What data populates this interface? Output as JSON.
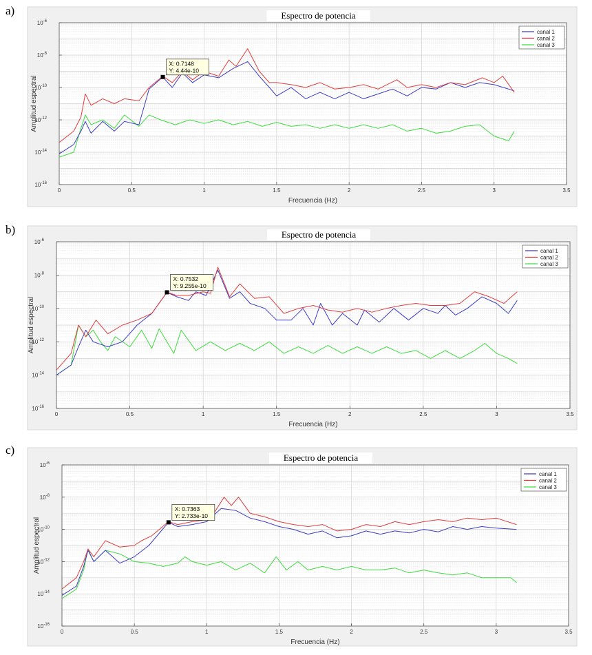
{
  "chart_data": [
    {
      "type": "line",
      "panel": "a)",
      "title": "Espectro de potencia",
      "xlabel": "Frecuencia (Hz)",
      "ylabel": "Amplitud espectral",
      "xlim": [
        0,
        3.5
      ],
      "ylim": [
        1e-16,
        1e-06
      ],
      "yscale": "log",
      "xticks": [
        "0",
        "0.5",
        "1",
        "1.5",
        "2",
        "2.5",
        "3",
        "3.5"
      ],
      "yticks": [
        "10^-16",
        "10^-14",
        "10^-12",
        "10^-10",
        "10^-8",
        "10^-6"
      ],
      "grid": true,
      "legend_position": "top-right",
      "colors": {
        "canal 1": "#3b3bc8",
        "canal 2": "#e03c3c",
        "canal 3": "#3cdc3c"
      },
      "datatip": {
        "x": 0.7148,
        "y": 4.44e-10,
        "x_text": "X: 0.7148",
        "y_text": "Y: 4.44e-10"
      },
      "series": [
        {
          "name": "canal 1",
          "x": [
            0,
            0.1,
            0.15,
            0.18,
            0.22,
            0.3,
            0.38,
            0.45,
            0.55,
            0.62,
            0.7148,
            0.78,
            0.85,
            0.92,
            1.0,
            1.1,
            1.2,
            1.3,
            1.38,
            1.45,
            1.5,
            1.6,
            1.7,
            1.8,
            1.9,
            2.0,
            2.1,
            2.2,
            2.3,
            2.4,
            2.5,
            2.6,
            2.7,
            2.8,
            2.9,
            3.0,
            3.1,
            3.14
          ],
          "y": [
            8e-15,
            3e-14,
            2e-13,
            8e-13,
            1.5e-13,
            8e-13,
            2e-13,
            8e-13,
            5e-13,
            8e-11,
            4.44e-10,
            1e-10,
            8e-10,
            2e-10,
            6e-10,
            4e-10,
            1.5e-09,
            4e-09,
            5e-10,
            1e-10,
            3e-11,
            1e-10,
            2e-11,
            5e-11,
            2e-11,
            5e-11,
            2e-11,
            4e-11,
            8e-11,
            3e-11,
            1e-10,
            8e-11,
            2e-10,
            1e-10,
            2e-10,
            1.5e-10,
            8e-11,
            6e-11
          ]
        },
        {
          "name": "canal 2",
          "x": [
            0,
            0.1,
            0.15,
            0.18,
            0.22,
            0.3,
            0.38,
            0.45,
            0.55,
            0.62,
            0.7148,
            0.78,
            0.85,
            0.92,
            1.0,
            1.1,
            1.17,
            1.22,
            1.3,
            1.38,
            1.45,
            1.5,
            1.6,
            1.7,
            1.8,
            1.9,
            2.0,
            2.1,
            2.2,
            2.33,
            2.4,
            2.5,
            2.6,
            2.7,
            2.8,
            2.92,
            3.0,
            3.06,
            3.14
          ],
          "y": [
            4e-14,
            2e-13,
            1.5e-12,
            4e-11,
            8e-12,
            2e-11,
            1e-11,
            2e-11,
            1.5e-11,
            1e-10,
            5e-10,
            2e-10,
            1e-09,
            3e-10,
            1e-09,
            5e-10,
            5e-09,
            2e-09,
            2.5e-08,
            1e-09,
            2e-10,
            2e-10,
            1.5e-10,
            1e-10,
            2e-10,
            8e-11,
            1e-10,
            1.5e-10,
            8e-11,
            3e-10,
            1e-10,
            1.5e-10,
            1e-10,
            2e-10,
            1.5e-10,
            4e-10,
            2e-10,
            5e-10,
            5e-11
          ]
        },
        {
          "name": "canal 3",
          "x": [
            0,
            0.1,
            0.15,
            0.18,
            0.22,
            0.3,
            0.38,
            0.45,
            0.55,
            0.62,
            0.7,
            0.8,
            0.9,
            1.0,
            1.1,
            1.2,
            1.3,
            1.4,
            1.5,
            1.6,
            1.7,
            1.8,
            1.9,
            2.0,
            2.1,
            2.2,
            2.3,
            2.4,
            2.5,
            2.6,
            2.7,
            2.8,
            2.9,
            3.0,
            3.1,
            3.14
          ],
          "y": [
            5e-15,
            1e-14,
            3e-13,
            2e-12,
            5e-13,
            1e-12,
            3e-13,
            2e-12,
            4e-13,
            2e-12,
            1e-12,
            5e-13,
            1e-12,
            6e-13,
            1e-12,
            5e-13,
            8e-13,
            4e-13,
            7e-13,
            4e-13,
            5e-13,
            3e-13,
            5e-13,
            3e-13,
            5e-13,
            3e-13,
            5e-13,
            2e-13,
            3e-13,
            1.5e-13,
            2e-13,
            4e-13,
            5e-13,
            1e-13,
            5e-14,
            2e-13
          ]
        }
      ]
    },
    {
      "type": "line",
      "panel": "b)",
      "title": "Espectro de potencia",
      "xlabel": "Frecuencia (Hz)",
      "ylabel": "Amplitud espectral",
      "xlim": [
        0,
        3.5
      ],
      "ylim": [
        1e-16,
        1e-06
      ],
      "yscale": "log",
      "xticks": [
        "0",
        "0.5",
        "1",
        "1.5",
        "2",
        "2.5",
        "3",
        "3.5"
      ],
      "yticks": [
        "10^-16",
        "10^-14",
        "10^-12",
        "10^-10",
        "10^-8",
        "10^-6"
      ],
      "grid": true,
      "legend_position": "top-right",
      "colors": {
        "canal 1": "#3b3bc8",
        "canal 2": "#e03c3c",
        "canal 3": "#3cdc3c"
      },
      "datatip": {
        "x": 0.7532,
        "y": 9.255e-10,
        "x_text": "X: 0.7532",
        "y_text": "Y: 9.255e-10"
      },
      "series": [
        {
          "name": "canal 1",
          "x": [
            0,
            0.1,
            0.15,
            0.2,
            0.25,
            0.35,
            0.45,
            0.55,
            0.65,
            0.7532,
            0.82,
            0.9,
            0.95,
            1.02,
            1.1,
            1.18,
            1.25,
            1.32,
            1.42,
            1.5,
            1.6,
            1.68,
            1.75,
            1.8,
            1.88,
            1.95,
            2.05,
            2.1,
            2.2,
            2.3,
            2.4,
            2.5,
            2.6,
            2.65,
            2.72,
            2.8,
            2.9,
            3.0,
            3.08,
            3.14
          ],
          "y": [
            1e-14,
            4e-14,
            5e-13,
            5e-12,
            1e-12,
            5e-13,
            1e-12,
            1e-11,
            5e-11,
            9.255e-10,
            5e-10,
            3e-10,
            1e-09,
            6e-10,
            2e-08,
            4e-10,
            1e-09,
            2e-10,
            1e-10,
            2e-11,
            2e-11,
            1e-10,
            1e-11,
            2e-10,
            1e-11,
            5e-11,
            1e-11,
            8e-11,
            1.5e-11,
            1e-10,
            2e-11,
            1e-10,
            5e-11,
            1.5e-10,
            4e-11,
            1e-10,
            5e-10,
            2e-10,
            5e-11,
            3e-10
          ]
        },
        {
          "name": "canal 2",
          "x": [
            0,
            0.1,
            0.15,
            0.2,
            0.27,
            0.35,
            0.45,
            0.55,
            0.65,
            0.7532,
            0.82,
            0.9,
            1.0,
            1.05,
            1.1,
            1.18,
            1.25,
            1.35,
            1.45,
            1.55,
            1.65,
            1.75,
            1.85,
            1.95,
            2.05,
            2.15,
            2.25,
            2.35,
            2.45,
            2.55,
            2.65,
            2.75,
            2.85,
            2.95,
            3.05,
            3.14
          ],
          "y": [
            2e-14,
            2e-13,
            1e-11,
            2e-12,
            2e-11,
            3e-12,
            1e-11,
            2e-11,
            5e-11,
            9.255e-10,
            6e-10,
            6e-10,
            1e-09,
            8e-10,
            3e-08,
            5e-10,
            3e-09,
            4e-10,
            5e-10,
            5e-11,
            1e-10,
            1.5e-10,
            8e-11,
            6e-11,
            1e-10,
            6e-11,
            1e-10,
            1.5e-10,
            2e-10,
            1.5e-10,
            1.5e-10,
            2e-10,
            1e-09,
            5e-10,
            2e-10,
            1e-09
          ]
        },
        {
          "name": "canal 3",
          "x": [
            0,
            0.1,
            0.15,
            0.2,
            0.25,
            0.3,
            0.35,
            0.4,
            0.5,
            0.58,
            0.65,
            0.7,
            0.8,
            0.85,
            0.95,
            1.05,
            1.15,
            1.25,
            1.35,
            1.45,
            1.55,
            1.65,
            1.75,
            1.85,
            1.95,
            2.05,
            2.15,
            2.25,
            2.35,
            2.45,
            2.55,
            2.65,
            2.75,
            2.85,
            2.92,
            3.0,
            3.08,
            3.14
          ],
          "y": [
            1e-14,
            4e-14,
            1e-11,
            2e-12,
            5e-12,
            1e-12,
            3e-13,
            2e-12,
            5e-13,
            5e-12,
            4e-13,
            6e-12,
            2e-13,
            5e-12,
            3e-13,
            1e-12,
            3e-13,
            8e-13,
            3e-13,
            1e-12,
            2e-13,
            5e-13,
            2e-13,
            6e-13,
            2e-13,
            5e-13,
            2e-13,
            5e-13,
            2e-13,
            3e-13,
            1e-13,
            3e-13,
            1e-13,
            3e-13,
            8e-13,
            2e-13,
            1e-13,
            5e-14
          ]
        }
      ]
    },
    {
      "type": "line",
      "panel": "c)",
      "title": "Espectro de potencia",
      "xlabel": "Frecuencia (Hz)",
      "ylabel": "Amplitud espectral",
      "xlim": [
        0,
        3.5
      ],
      "ylim": [
        1e-16,
        1e-06
      ],
      "yscale": "log",
      "xticks": [
        "0",
        "0.5",
        "1",
        "1.5",
        "2",
        "2.5",
        "3",
        "3.5"
      ],
      "yticks": [
        "10^-16",
        "10^-14",
        "10^-12",
        "10^-10",
        "10^-8",
        "10^-6"
      ],
      "grid": true,
      "legend_position": "top-right",
      "colors": {
        "canal 1": "#3b3bc8",
        "canal 2": "#e03c3c",
        "canal 3": "#3cdc3c"
      },
      "datatip": {
        "x": 0.7363,
        "y": 2.733e-10,
        "x_text": "X: 0.7363",
        "y_text": "Y: 2.733e-10"
      },
      "series": [
        {
          "name": "canal 1",
          "x": [
            0,
            0.1,
            0.15,
            0.18,
            0.22,
            0.3,
            0.4,
            0.5,
            0.6,
            0.7363,
            0.8,
            0.9,
            1.0,
            1.1,
            1.2,
            1.3,
            1.4,
            1.5,
            1.6,
            1.7,
            1.8,
            1.9,
            2.0,
            2.1,
            2.2,
            2.3,
            2.4,
            2.5,
            2.6,
            2.7,
            2.8,
            2.9,
            3.0,
            3.14
          ],
          "y": [
            8e-15,
            3e-14,
            5e-13,
            5e-12,
            1e-12,
            5e-12,
            8e-13,
            2e-12,
            1e-11,
            2.733e-10,
            1.5e-10,
            2e-10,
            3e-10,
            2e-09,
            1.5e-09,
            5e-10,
            3e-10,
            1.5e-10,
            1e-10,
            5e-11,
            8e-11,
            3e-11,
            4e-11,
            8e-11,
            5e-11,
            8e-11,
            6e-11,
            1e-10,
            7e-11,
            1.5e-10,
            1e-10,
            1.5e-10,
            1.2e-10,
            1e-10
          ]
        },
        {
          "name": "canal 2",
          "x": [
            0,
            0.1,
            0.15,
            0.18,
            0.22,
            0.3,
            0.4,
            0.5,
            0.55,
            0.62,
            0.7363,
            0.8,
            0.9,
            1.0,
            1.05,
            1.12,
            1.17,
            1.22,
            1.3,
            1.4,
            1.5,
            1.6,
            1.7,
            1.8,
            1.9,
            2.0,
            2.1,
            2.2,
            2.3,
            2.4,
            2.5,
            2.6,
            2.7,
            2.8,
            2.9,
            3.0,
            3.14
          ],
          "y": [
            2e-14,
            1e-13,
            1e-12,
            6e-12,
            2e-12,
            2e-11,
            8e-12,
            1e-11,
            2e-11,
            4e-11,
            3e-10,
            2e-10,
            3e-10,
            4e-10,
            1e-09,
            1e-08,
            3e-09,
            1e-08,
            1e-09,
            6e-10,
            3e-10,
            2e-10,
            1.5e-10,
            2e-10,
            8e-11,
            1e-10,
            2e-10,
            1.5e-10,
            3e-10,
            2e-10,
            3e-10,
            4e-10,
            3e-10,
            5e-10,
            4e-10,
            5e-10,
            2e-10
          ]
        },
        {
          "name": "canal 3",
          "x": [
            0,
            0.1,
            0.15,
            0.18,
            0.22,
            0.3,
            0.4,
            0.5,
            0.6,
            0.7,
            0.8,
            0.85,
            0.9,
            1.0,
            1.1,
            1.2,
            1.3,
            1.4,
            1.48,
            1.55,
            1.63,
            1.7,
            1.8,
            1.9,
            2.0,
            2.1,
            2.2,
            2.3,
            2.4,
            2.5,
            2.6,
            2.7,
            2.8,
            2.9,
            3.0,
            3.1,
            3.14
          ],
          "y": [
            5e-15,
            2e-14,
            3e-13,
            6e-12,
            1e-12,
            5e-12,
            3e-12,
            1e-12,
            8e-13,
            5e-13,
            8e-13,
            2e-12,
            1e-12,
            6e-13,
            1e-12,
            3e-13,
            8e-13,
            2e-13,
            2e-12,
            3e-13,
            1e-12,
            3e-13,
            5e-13,
            3e-13,
            5e-13,
            3e-13,
            3e-13,
            4e-13,
            2e-13,
            3e-13,
            2e-13,
            1.5e-13,
            2e-13,
            1e-13,
            1e-13,
            1e-13,
            5e-14
          ]
        }
      ]
    }
  ]
}
